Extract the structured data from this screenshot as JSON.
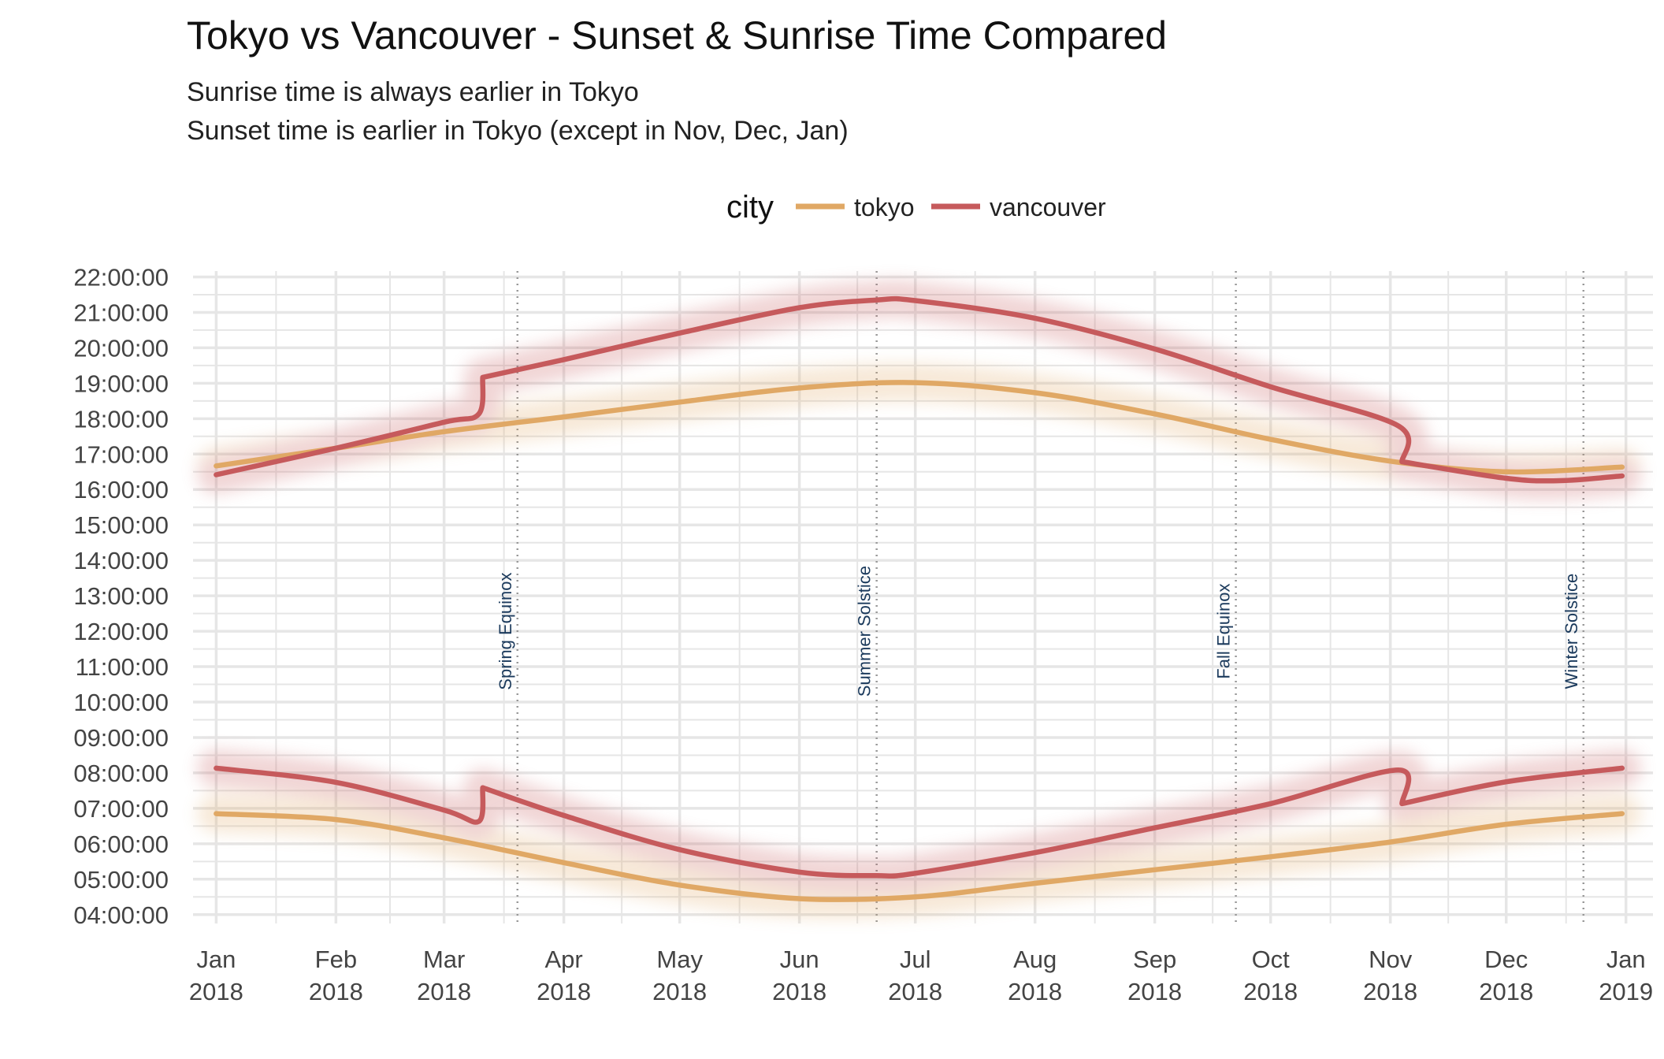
{
  "chart_data": {
    "type": "line",
    "title": "Tokyo vs Vancouver - Sunset & Sunrise Time Compared",
    "subtitle": [
      "Sunrise time is always earlier in Tokyo",
      "Sunset time is earlier in Tokyo (except in Nov, Dec, Jan)"
    ],
    "xlabel": "",
    "ylabel": "",
    "legend": {
      "title": "city",
      "placement": "top",
      "entries": [
        "tokyo",
        "vancouver"
      ]
    },
    "colors": {
      "tokyo": "#E0A865",
      "vancouver": "#C65A5C",
      "grid": "#e6e6e6",
      "annotation": "#1b3a5c"
    },
    "xlim": [
      "2017-12-26",
      "2019-01-08"
    ],
    "ylim": [
      "03:45:00",
      "22:10:00"
    ],
    "y_ticks": [
      "04:00:00",
      "05:00:00",
      "06:00:00",
      "07:00:00",
      "08:00:00",
      "09:00:00",
      "10:00:00",
      "11:00:00",
      "12:00:00",
      "13:00:00",
      "14:00:00",
      "15:00:00",
      "16:00:00",
      "17:00:00",
      "18:00:00",
      "19:00:00",
      "20:00:00",
      "21:00:00",
      "22:00:00"
    ],
    "x_ticks": [
      {
        "date": "2018-01-01",
        "label": [
          "Jan",
          "2018"
        ]
      },
      {
        "date": "2018-02-01",
        "label": [
          "Feb",
          "2018"
        ]
      },
      {
        "date": "2018-03-01",
        "label": [
          "Mar",
          "2018"
        ]
      },
      {
        "date": "2018-04-01",
        "label": [
          "Apr",
          "2018"
        ]
      },
      {
        "date": "2018-05-01",
        "label": [
          "May",
          "2018"
        ]
      },
      {
        "date": "2018-06-01",
        "label": [
          "Jun",
          "2018"
        ]
      },
      {
        "date": "2018-07-01",
        "label": [
          "Jul",
          "2018"
        ]
      },
      {
        "date": "2018-08-01",
        "label": [
          "Aug",
          "2018"
        ]
      },
      {
        "date": "2018-09-01",
        "label": [
          "Sep",
          "2018"
        ]
      },
      {
        "date": "2018-10-01",
        "label": [
          "Oct",
          "2018"
        ]
      },
      {
        "date": "2018-11-01",
        "label": [
          "Nov",
          "2018"
        ]
      },
      {
        "date": "2018-12-01",
        "label": [
          "Dec",
          "2018"
        ]
      },
      {
        "date": "2019-01-01",
        "label": [
          "Jan",
          "2019"
        ]
      }
    ],
    "annotations": [
      {
        "date": "2018-03-20",
        "label": "Spring Equinox"
      },
      {
        "date": "2018-06-21",
        "label": "Summer Solstice"
      },
      {
        "date": "2018-09-22",
        "label": "Fall Equinox"
      },
      {
        "date": "2018-12-21",
        "label": "Winter Solstice"
      }
    ],
    "series": [
      {
        "name": "tokyo",
        "kind": "sunset",
        "x": [
          "2018-01-01",
          "2018-02-01",
          "2018-03-01",
          "2018-04-01",
          "2018-05-01",
          "2018-06-01",
          "2018-07-01",
          "2018-08-01",
          "2018-09-01",
          "2018-10-01",
          "2018-11-01",
          "2018-12-01",
          "2018-12-31"
        ],
        "y": [
          "16:40",
          "17:10",
          "17:38",
          "18:03",
          "18:28",
          "18:52",
          "19:01",
          "18:44",
          "18:08",
          "17:25",
          "16:48",
          "16:30",
          "16:38"
        ]
      },
      {
        "name": "tokyo",
        "kind": "sunrise",
        "x": [
          "2018-01-01",
          "2018-02-01",
          "2018-03-01",
          "2018-04-01",
          "2018-05-01",
          "2018-06-01",
          "2018-07-01",
          "2018-08-01",
          "2018-09-01",
          "2018-10-01",
          "2018-11-01",
          "2018-12-01",
          "2018-12-31"
        ],
        "y": [
          "06:51",
          "06:41",
          "06:10",
          "05:28",
          "04:50",
          "04:27",
          "04:30",
          "04:53",
          "05:16",
          "05:38",
          "06:03",
          "06:33",
          "06:51"
        ]
      },
      {
        "name": "vancouver",
        "kind": "sunset",
        "x": [
          "2018-01-01",
          "2018-02-01",
          "2018-03-01",
          "2018-03-10",
          "2018-03-11",
          "2018-04-01",
          "2018-05-01",
          "2018-06-01",
          "2018-06-21",
          "2018-07-01",
          "2018-08-01",
          "2018-09-01",
          "2018-10-01",
          "2018-11-03",
          "2018-11-04",
          "2018-12-01",
          "2018-12-15",
          "2018-12-31"
        ],
        "y": [
          "16:25",
          "17:10",
          "17:54",
          "18:08",
          "19:10",
          "19:40",
          "20:25",
          "21:08",
          "21:21",
          "21:20",
          "20:50",
          "19:58",
          "18:54",
          "17:48",
          "16:47",
          "16:19",
          "16:15",
          "16:23"
        ]
      },
      {
        "name": "vancouver",
        "kind": "sunrise",
        "x": [
          "2018-01-01",
          "2018-02-01",
          "2018-03-01",
          "2018-03-10",
          "2018-03-11",
          "2018-04-01",
          "2018-05-01",
          "2018-06-01",
          "2018-06-21",
          "2018-07-01",
          "2018-08-01",
          "2018-09-01",
          "2018-10-01",
          "2018-11-03",
          "2018-11-04",
          "2018-12-01",
          "2018-12-31"
        ],
        "y": [
          "08:08",
          "07:44",
          "06:57",
          "06:38",
          "07:35",
          "06:48",
          "05:50",
          "05:12",
          "05:06",
          "05:10",
          "05:45",
          "06:27",
          "07:08",
          "08:05",
          "07:08",
          "07:45",
          "08:08"
        ]
      }
    ]
  }
}
